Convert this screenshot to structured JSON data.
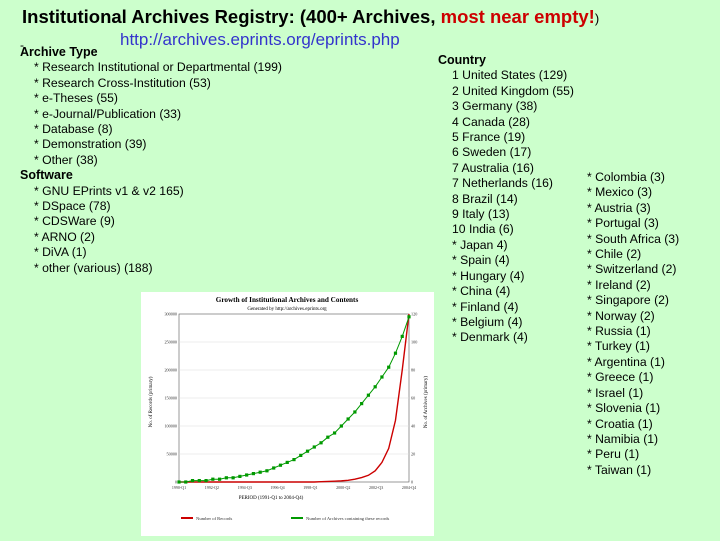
{
  "slide": {
    "title_prefix": "Institutional Archives Registry:  (400+ Archives, ",
    "title_red": "most near empty!",
    "title_suffix": ")",
    "url": "http://archives.eprints.org/eprints.php",
    "dash": "-"
  },
  "archive_type": {
    "header": "Archive Type",
    "items": [
      "* Research Institutional or Departmental (199)",
      "* Research Cross-Institution (53)",
      "* e-Theses (55)",
      "* e-Journal/Publication (33)",
      "* Database (8)",
      "* Demonstration (39)",
      "* Other (38)"
    ]
  },
  "software": {
    "header": "Software",
    "items": [
      "* GNU EPrints v1 & v2 165)",
      "* DSpace (78)",
      "* CDSWare (9)",
      "* ARNO (2)",
      "* DiVA (1)",
      "* other (various) (188)"
    ]
  },
  "country": {
    "header": "Country",
    "items": [
      "1 United States (129)",
      "2 United Kingdom (55)",
      "3 Germany (38)",
      "4 Canada (28)",
      "5 France (19)",
      "6 Sweden (17)",
      "7 Australia (16)",
      "7 Netherlands (16)",
      "8 Brazil (14)",
      "9 Italy (13)",
      "10 India (6)",
      "* Japan 4)",
      "* Spain (4)",
      "* Hungary (4)",
      "* China (4)",
      "* Finland (4)",
      "* Belgium (4)",
      "* Denmark (4)"
    ],
    "more_items": [
      "* Colombia (3)",
      "* Mexico (3)",
      "* Austria (3)",
      "* Portugal (3)",
      "* South Africa (3)",
      "* Chile (2)",
      "* Switzerland (2)",
      "* Ireland (2)",
      "* Singapore (2)",
      "* Norway (2)",
      "* Russia (1)",
      "* Turkey (1)",
      "* Argentina (1)",
      "* Greece (1)",
      "* Israel (1)",
      "* Slovenia (1)",
      "* Croatia (1)",
      "* Namibia (1)",
      "* Peru (1)",
      "* Taiwan (1)"
    ]
  },
  "chart_data": {
    "type": "line",
    "title": "Growth of Institutional Archives and Contents",
    "subtitle": "Generated by http://archives.eprints.org",
    "xlabel": "PERIOD (1991-Q1 to 2004-Q4)",
    "ylabel_left": "No. of Records (primary)",
    "ylabel_right": "No. of Archives (primary)",
    "x_ticks": [
      "1990-Q1",
      "1992-Q2",
      "1994-Q3",
      "1996-Q4",
      "1998-Q1",
      "2000-Q2",
      "2002-Q3",
      "2004-Q4"
    ],
    "y_left_ticks": [
      "0",
      "50000",
      "100000",
      "150000",
      "200000",
      "250000",
      "300000"
    ],
    "y_right_ticks": [
      "0",
      "20",
      "40",
      "60",
      "80",
      "100",
      "120"
    ],
    "ylim_left": [
      0,
      300000
    ],
    "ylim_right": [
      0,
      120
    ],
    "colors": {
      "records": "#cc0000",
      "archives": "#009900"
    },
    "series": [
      {
        "name": "Number of Records",
        "axis": "left",
        "values": [
          0,
          0,
          0,
          0,
          0,
          0,
          0,
          0,
          0,
          0,
          0,
          0,
          0,
          0,
          0,
          0,
          0,
          0,
          0,
          0,
          0,
          500,
          1000,
          1500,
          2000,
          3000,
          5000,
          8000,
          12000,
          20000,
          35000,
          60000,
          110000,
          200000,
          300000
        ]
      },
      {
        "name": "Number of Archives containing these records",
        "axis": "right",
        "values": [
          0,
          0,
          1,
          1,
          1,
          2,
          2,
          3,
          3,
          4,
          5,
          6,
          7,
          8,
          10,
          12,
          14,
          16,
          19,
          22,
          25,
          28,
          32,
          35,
          40,
          45,
          50,
          56,
          62,
          68,
          75,
          82,
          92,
          104,
          118
        ]
      }
    ]
  }
}
